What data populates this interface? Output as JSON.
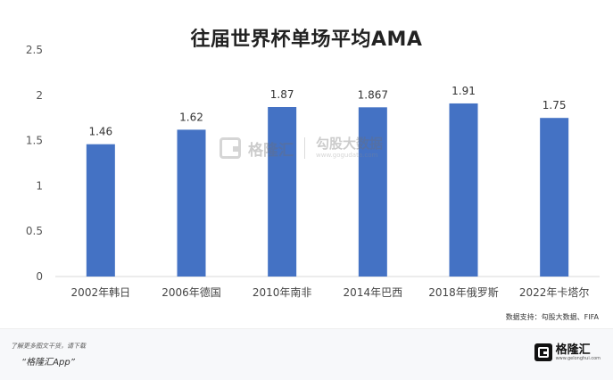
{
  "chart_data": {
    "type": "bar",
    "title": "往届世界杯单场平均AMA",
    "categories": [
      "2002年韩日",
      "2006年德国",
      "2010年南非",
      "2014年巴西",
      "2018年俄罗斯",
      "2022年卡塔尔"
    ],
    "values": [
      1.46,
      1.62,
      1.87,
      1.867,
      1.91,
      1.75
    ],
    "data_labels": [
      "1.46",
      "1.62",
      "1.87",
      "1.867",
      "1.91",
      "1.75"
    ],
    "ylim": [
      0,
      2.5
    ],
    "yticks": [
      0,
      0.5,
      1,
      1.5,
      2,
      2.5
    ],
    "ytick_labels": [
      "0",
      "0.5",
      "1",
      "1.5",
      "2",
      "2.5"
    ],
    "xlabel": "",
    "ylabel": "",
    "grid": false,
    "legend": "none",
    "bar_color": "#4472c4"
  },
  "watermark": {
    "brand": "格隆汇",
    "sub_brand": "勾股大数据",
    "url": "www.gogudata.com"
  },
  "source": "数据支持：勾股大数据、FIFA",
  "footer": {
    "line1": "了解更多图文干货，请下载",
    "line2": "“格隆汇App”",
    "logo_text": "格隆汇",
    "logo_url": "www.gelonghui.com"
  }
}
